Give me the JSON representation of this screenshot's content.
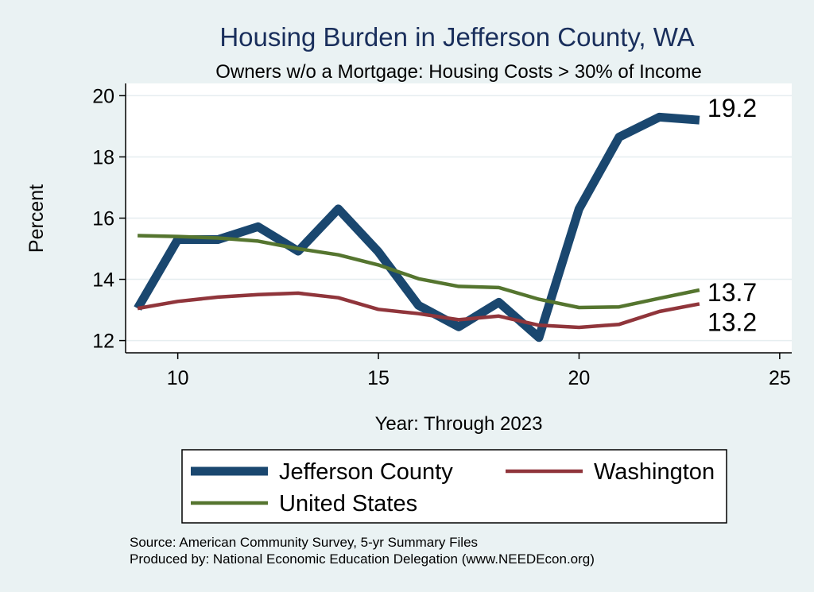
{
  "chart_data": {
    "type": "line",
    "title": "Housing Burden in Jefferson County, WA",
    "subtitle": "Owners w/o a Mortgage: Housing Costs > 30% of Income",
    "xlabel": "Year: Through 2023",
    "ylabel": "Percent",
    "xlim": [
      8.7,
      25.3
    ],
    "ylim": [
      11.6,
      20.4
    ],
    "xticks": [
      10,
      15,
      20,
      25
    ],
    "yticks": [
      12,
      14,
      16,
      18,
      20
    ],
    "grid": true,
    "legend_position": "bottom",
    "x": [
      9,
      10,
      11,
      12,
      13,
      14,
      15,
      16,
      17,
      18,
      19,
      20,
      21,
      22,
      23
    ],
    "series": [
      {
        "name": "Jefferson County",
        "color": "#1a476f",
        "values": [
          13.05,
          15.3,
          15.3,
          15.72,
          14.92,
          16.3,
          14.9,
          13.15,
          12.45,
          13.25,
          12.1,
          16.3,
          18.65,
          19.3,
          19.2
        ],
        "end_label": "19.2"
      },
      {
        "name": "Washington",
        "color": "#90353b",
        "values": [
          13.05,
          13.28,
          13.42,
          13.5,
          13.55,
          13.4,
          13.02,
          12.88,
          12.68,
          12.8,
          12.5,
          12.43,
          12.53,
          12.95,
          13.2
        ],
        "end_label": "13.2"
      },
      {
        "name": "United States",
        "color": "#55752f",
        "values": [
          15.43,
          15.4,
          15.35,
          15.25,
          15.0,
          14.8,
          14.47,
          14.02,
          13.77,
          13.73,
          13.35,
          13.08,
          13.1,
          13.38,
          13.65
        ],
        "end_label": "13.7"
      }
    ]
  },
  "source_text": "Source: American Community Survey, 5-yr Summary Files",
  "produced_text": "Produced by: National Economic Education Delegation (www.NEEDEcon.org)"
}
